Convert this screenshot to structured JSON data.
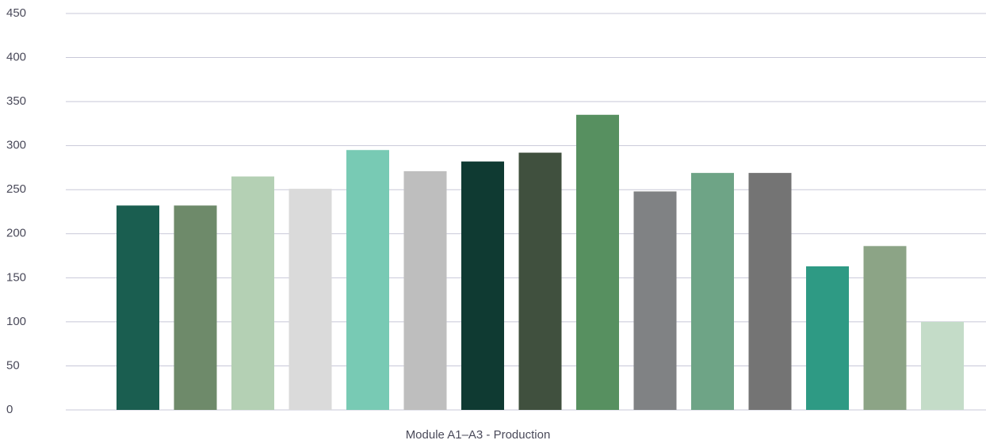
{
  "chart_data": {
    "type": "bar",
    "categories": [
      "Module A1–A3 - Production"
    ],
    "series": [
      {
        "color": "#1a5e50",
        "values": [
          232
        ]
      },
      {
        "color": "#6e8a6a",
        "values": [
          232
        ]
      },
      {
        "color": "#b4d0b4",
        "values": [
          265
        ]
      },
      {
        "color": "#dadada",
        "values": [
          251
        ]
      },
      {
        "color": "#78cab4",
        "values": [
          295
        ]
      },
      {
        "color": "#bebebe",
        "values": [
          271
        ]
      },
      {
        "color": "#0f3a32",
        "values": [
          282
        ]
      },
      {
        "color": "#40503e",
        "values": [
          292
        ]
      },
      {
        "color": "#579060",
        "values": [
          335
        ]
      },
      {
        "color": "#808284",
        "values": [
          248
        ]
      },
      {
        "color": "#6ea486",
        "values": [
          269
        ]
      },
      {
        "color": "#747474",
        "values": [
          269
        ]
      },
      {
        "color": "#2e9a84",
        "values": [
          163
        ]
      },
      {
        "color": "#8ca486",
        "values": [
          186
        ]
      },
      {
        "color": "#c4dcc8",
        "values": [
          100
        ]
      }
    ],
    "ylim": [
      0,
      450
    ],
    "yticks": [
      0,
      50,
      100,
      150,
      200,
      250,
      300,
      350,
      400,
      450
    ],
    "grid": true
  }
}
